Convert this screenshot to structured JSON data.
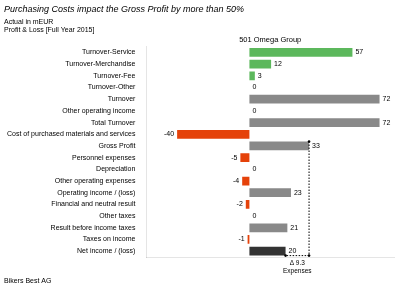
{
  "chart_data": {
    "type": "bar",
    "orientation": "horizontal",
    "title": "Purchasing Costs impact the Gross Profit by more than 50%",
    "subtitle": [
      "Actual in mEUR",
      "Profit & Loss [Full Year 2015]"
    ],
    "footer": "Bikers Best AG",
    "annotations": [
      {
        "text": "501 Omega Group"
      },
      {
        "text": "Δ 9.3\nExpenses",
        "x": [
          33,
          20
        ]
      }
    ],
    "categories": [
      "Turnover-Service",
      "Turnover-Merchandise",
      "Turnover-Fee",
      "Turnover-Other",
      "Turnover",
      "Other operating income",
      "Total Turnover",
      "Cost of purchased materials and services",
      "Gross Profit",
      "Personnel expenses",
      "Depreciation",
      "Other operating expenses",
      "Operating income / (loss)",
      "Financial and neutral result",
      "Other taxes",
      "Result before income taxes",
      "Taxes on income",
      "Net income / (loss)"
    ],
    "values": [
      57,
      12,
      3,
      0,
      72,
      0,
      72,
      -40,
      33,
      -5,
      0,
      -4,
      23,
      -2,
      0,
      21,
      -1,
      20
    ],
    "colors": [
      "#5cb85c",
      "#5cb85c",
      "#5cb85c",
      "#dddddd",
      "#898989",
      "#dddddd",
      "#898989",
      "#e5420a",
      "#898989",
      "#e5420a",
      "#dddddd",
      "#e5420a",
      "#898989",
      "#e5420a",
      "#dddddd",
      "#898989",
      "#e5420a",
      "#333333"
    ],
    "xlim": [
      -57,
      80
    ],
    "data_labels": true,
    "tick_labels": "y",
    "grid": false
  }
}
